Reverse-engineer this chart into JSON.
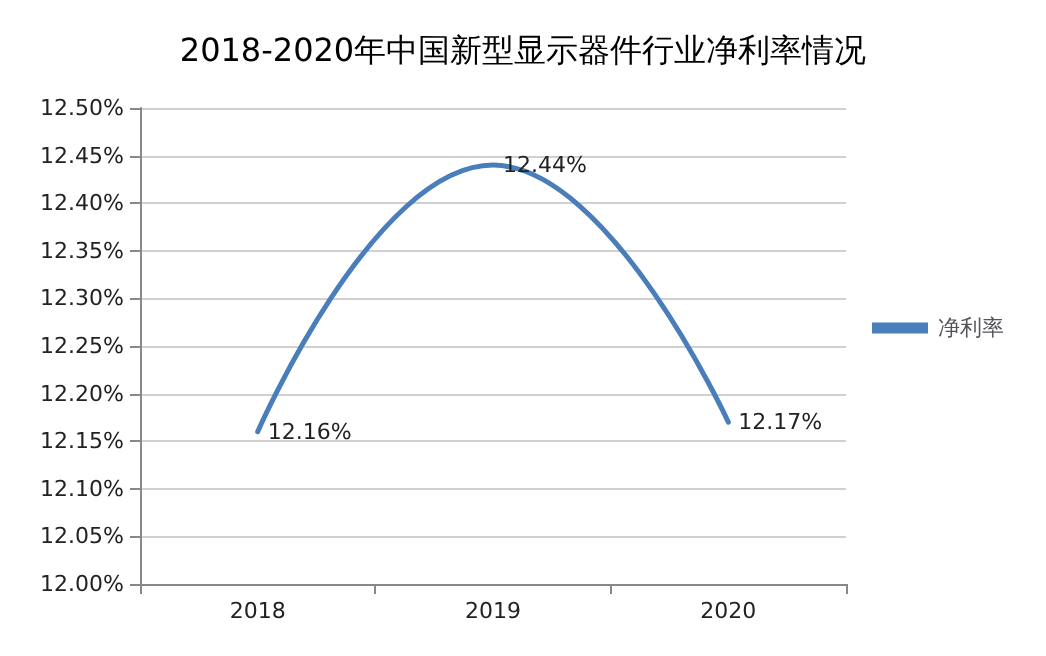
{
  "chart_data": {
    "type": "line",
    "title": "2018-2020年中国新型显示器件行业净利率情况",
    "categories": [
      "2018",
      "2019",
      "2020"
    ],
    "series": [
      {
        "name": "净利率",
        "color": "#4a7ebb",
        "values": [
          12.16,
          12.44,
          12.17
        ],
        "value_labels": [
          "12.16%",
          "12.44%",
          "12.17%"
        ]
      }
    ],
    "ylim": [
      12.0,
      12.5
    ],
    "yticks": [
      {
        "value": 12.0,
        "label": "12.00%"
      },
      {
        "value": 12.05,
        "label": "12.05%"
      },
      {
        "value": 12.1,
        "label": "12.10%"
      },
      {
        "value": 12.15,
        "label": "12.15%"
      },
      {
        "value": 12.2,
        "label": "12.20%"
      },
      {
        "value": 12.25,
        "label": "12.25%"
      },
      {
        "value": 12.3,
        "label": "12.30%"
      },
      {
        "value": 12.35,
        "label": "12.35%"
      },
      {
        "value": 12.4,
        "label": "12.40%"
      },
      {
        "value": 12.45,
        "label": "12.45%"
      },
      {
        "value": 12.5,
        "label": "12.50%"
      }
    ],
    "grid": "y",
    "legend": "right",
    "marker": "none",
    "line_style": "solid"
  }
}
